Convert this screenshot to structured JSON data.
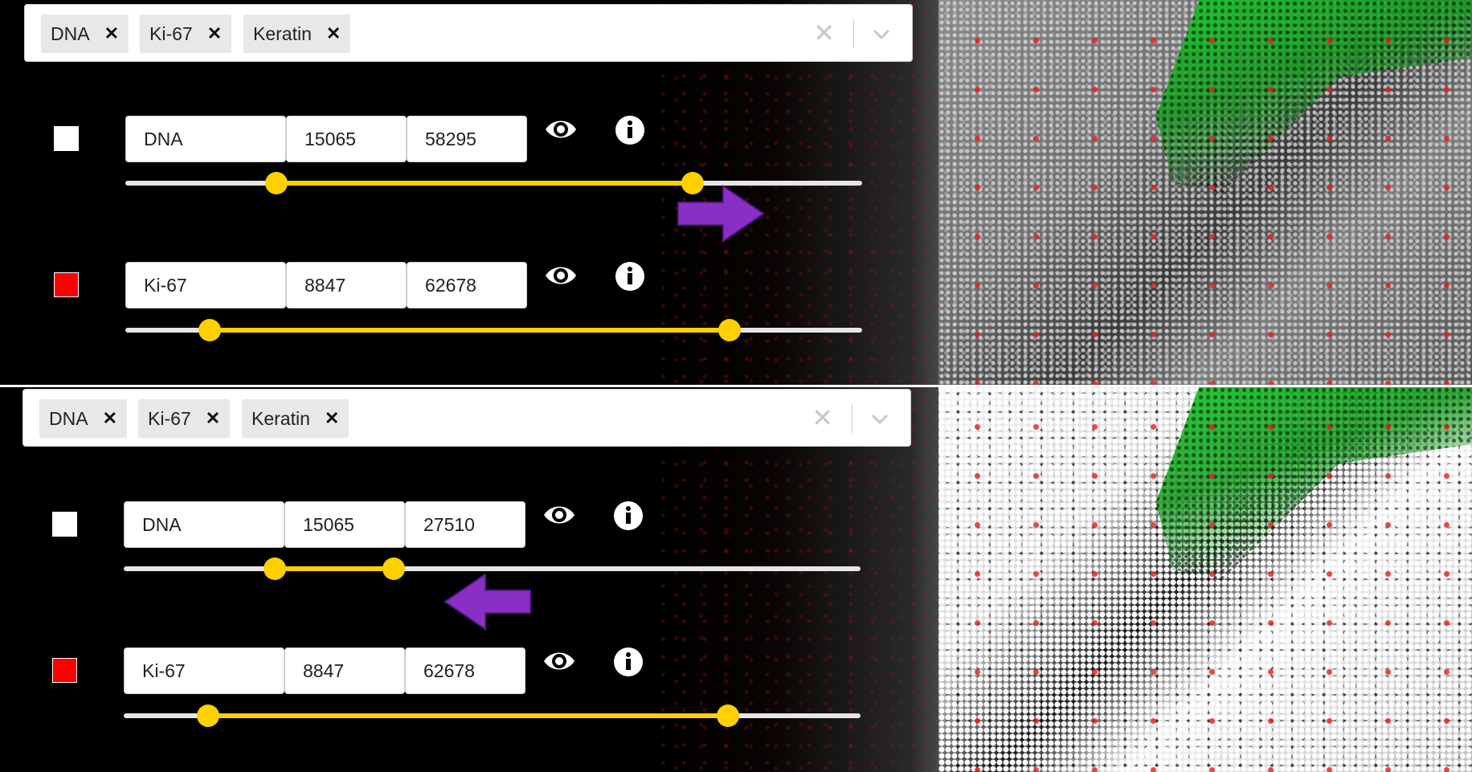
{
  "panels": [
    {
      "tags": [
        "DNA",
        "Ki-67",
        "Keratin"
      ],
      "channels": [
        {
          "name": "DNA",
          "min": "15065",
          "max": "58295",
          "color": "#ffffff",
          "range_low": 0.205,
          "range_high": 0.77
        },
        {
          "name": "Ki-67",
          "min": "8847",
          "max": "62678",
          "color": "#ff0000",
          "range_low": 0.115,
          "range_high": 0.82
        }
      ],
      "arrow": "right"
    },
    {
      "tags": [
        "DNA",
        "Ki-67",
        "Keratin"
      ],
      "channels": [
        {
          "name": "DNA",
          "min": "15065",
          "max": "27510",
          "color": "#ffffff",
          "range_low": 0.205,
          "range_high": 0.366
        },
        {
          "name": "Ki-67",
          "min": "8847",
          "max": "62678",
          "color": "#ff0000",
          "range_low": 0.115,
          "range_high": 0.82
        }
      ],
      "arrow": "left"
    }
  ],
  "icons": {
    "visibility": "eye-icon",
    "info": "info-icon",
    "clear": "clear-x-icon",
    "dropdown": "chevron-down-icon",
    "tag_remove": "close-icon"
  },
  "colors": {
    "slider": "#ffd000",
    "arrow": "#8a2fc6",
    "keratin": "#1fc830",
    "ki67": "#ff0000"
  }
}
